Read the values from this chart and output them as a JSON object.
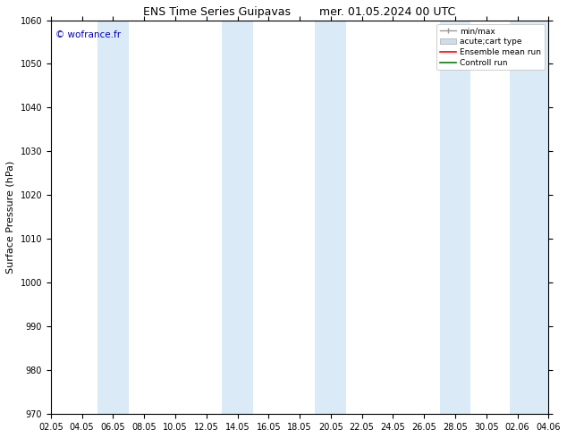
{
  "title_left": "ENS Time Series Guipavas",
  "title_right": "mer. 01.05.2024 00 UTC",
  "ylabel": "Surface Pressure (hPa)",
  "ylim": [
    970,
    1060
  ],
  "yticks": [
    970,
    980,
    990,
    1000,
    1010,
    1020,
    1030,
    1040,
    1050,
    1060
  ],
  "x_labels": [
    "02.05",
    "04.05",
    "06.05",
    "08.05",
    "10.05",
    "12.05",
    "14.05",
    "16.05",
    "18.05",
    "20.05",
    "22.05",
    "24.05",
    "26.05",
    "28.05",
    "30.05",
    "02.06",
    "04.06"
  ],
  "x_positions": [
    0,
    2,
    4,
    6,
    8,
    10,
    12,
    14,
    16,
    18,
    20,
    22,
    24,
    26,
    28,
    30,
    32
  ],
  "xlim": [
    0,
    32
  ],
  "shaded_bands": [
    {
      "x_start": 3.0,
      "x_end": 5.0
    },
    {
      "x_start": 11.0,
      "x_end": 13.0
    },
    {
      "x_start": 17.0,
      "x_end": 19.0
    },
    {
      "x_start": 25.0,
      "x_end": 27.0
    },
    {
      "x_start": 29.5,
      "x_end": 32.0
    }
  ],
  "band_color": "#daeaf7",
  "background_color": "#ffffff",
  "watermark": "© wofrance.fr",
  "watermark_color": "#0000bb",
  "watermark_fontsize": 7.5,
  "legend_labels": [
    "min/max",
    "acute;cart type",
    "Ensemble mean run",
    "Controll run"
  ],
  "legend_colors": [
    "#aaaaaa",
    "#ccdded",
    "#ff0000",
    "#008800"
  ],
  "title_fontsize": 9,
  "axis_fontsize": 7,
  "ylabel_fontsize": 8
}
